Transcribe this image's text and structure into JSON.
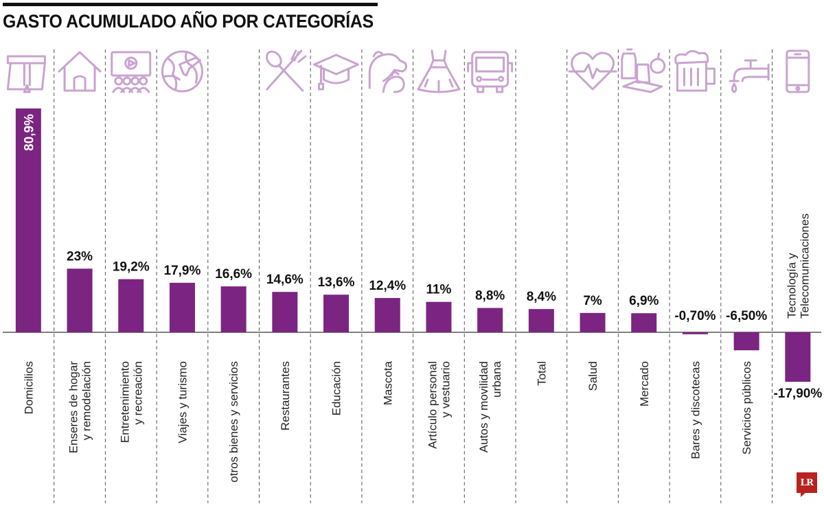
{
  "title": "GASTO ACUMULADO AÑO POR CATEGORÍAS",
  "logo": "LR",
  "colors": {
    "bar": "#7b2481",
    "icon": "#c9a3cf",
    "divider": "#555555",
    "axis": "#333333"
  },
  "chart_data": {
    "type": "bar",
    "title": "GASTO ACUMULADO AÑO POR CATEGORÍAS",
    "xlabel": "",
    "ylabel": "",
    "ylim": [
      -17.9,
      80.9
    ],
    "categories": [
      {
        "name": "Domicilios",
        "lines": [
          "Domicilios"
        ],
        "icon": "delivery-bag-icon"
      },
      {
        "name": "Enseres de hogar y remodelación",
        "lines": [
          "Enseres de hogar",
          "y remodelación"
        ],
        "icon": "house-icon"
      },
      {
        "name": "Entretenimiento y recreación",
        "lines": [
          "Entretenimiento",
          "y recreación"
        ],
        "icon": "cinema-screen-icon"
      },
      {
        "name": "Viajes y turismo",
        "lines": [
          "Viajes y turismo"
        ],
        "icon": "globe-plane-icon"
      },
      {
        "name": "otros bienes y servicios",
        "lines": [
          "otros bienes y servicios"
        ],
        "icon": ""
      },
      {
        "name": "Restaurantes",
        "lines": [
          "Restaurantes"
        ],
        "icon": "fork-spoon-icon"
      },
      {
        "name": "Educación",
        "lines": [
          "Educación"
        ],
        "icon": "graduation-cap-icon"
      },
      {
        "name": "Mascota",
        "lines": [
          "Mascota"
        ],
        "icon": "pets-icon"
      },
      {
        "name": "Artículo personal y vestuario",
        "lines": [
          "Artículo personal",
          "y vestuario"
        ],
        "icon": "dress-icon"
      },
      {
        "name": "Autos y movilidad urbana",
        "lines": [
          "Autos y movilidad",
          "urbana"
        ],
        "icon": "bus-icon"
      },
      {
        "name": "Total",
        "lines": [
          "Total"
        ],
        "icon": ""
      },
      {
        "name": "Salud",
        "lines": [
          "Salud"
        ],
        "icon": "heart-pulse-icon"
      },
      {
        "name": "Mercado",
        "lines": [
          "Mercado"
        ],
        "icon": "groceries-icon"
      },
      {
        "name": "Bares y discotecas",
        "lines": [
          "Bares y discotecas"
        ],
        "icon": "beer-mug-icon"
      },
      {
        "name": "Servicios públicos",
        "lines": [
          "Servicios públicos"
        ],
        "icon": "water-tap-icon"
      },
      {
        "name": "Tecnología y Telecomunicaciones",
        "lines": [
          "Tecnología y",
          "Telecomunicaciones"
        ],
        "icon": "smartphone-icon"
      }
    ],
    "values": [
      80.9,
      23,
      19.2,
      17.9,
      16.6,
      14.6,
      13.6,
      12.4,
      11,
      8.8,
      8.4,
      7,
      6.9,
      -0.7,
      -6.5,
      -17.9
    ],
    "value_labels": [
      "80,9%",
      "23%",
      "19,2%",
      "17,9%",
      "16,6%",
      "14,6%",
      "13,6%",
      "12,4%",
      "11%",
      "8,8%",
      "8,4%",
      "7%",
      "6,9%",
      "-0,70%",
      "-6,50%",
      "-17,90%"
    ]
  }
}
